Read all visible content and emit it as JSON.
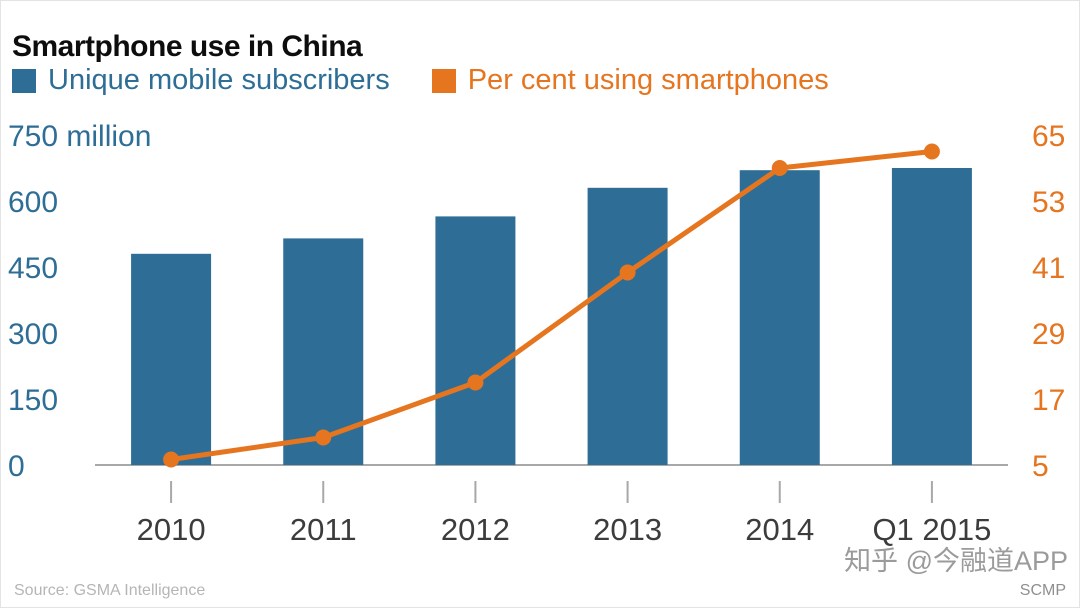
{
  "title": "Smartphone use in China",
  "colors": {
    "bar_blue": "#2e6e96",
    "line_orange": "#e5751f",
    "axis_gray": "#a8a8a8",
    "xlabel_gray": "#3c3c3c"
  },
  "legend": {
    "items": [
      {
        "label": "Unique mobile subscribers",
        "color": "#2e6e96"
      },
      {
        "label": "Per cent using smartphones",
        "color": "#e5751f"
      }
    ]
  },
  "footer": {
    "source": "Source: GSMA Intelligence",
    "credit": "SCMP",
    "watermark": "知乎 @今融道APP"
  },
  "chart_data": {
    "type": "bar",
    "title": "Smartphone use in China",
    "categories": [
      "2010",
      "2011",
      "2012",
      "2013",
      "2014",
      "Q1 2015"
    ],
    "series": [
      {
        "name": "Unique mobile subscribers",
        "type": "bar",
        "axis": "left",
        "color": "#2e6e96",
        "values": [
          480,
          515,
          565,
          630,
          670,
          675
        ]
      },
      {
        "name": "Per cent using smartphones",
        "type": "line",
        "axis": "right",
        "color": "#e5751f",
        "values": [
          6,
          10,
          20,
          40,
          59,
          62
        ]
      }
    ],
    "left_axis": {
      "unit": "million",
      "range": [
        0,
        750
      ],
      "tick_values": [
        750,
        600,
        450,
        300,
        150,
        0
      ],
      "tick_labels": [
        "750 million",
        "600",
        "450",
        "300",
        "150",
        "0"
      ],
      "color": "#2e6e96"
    },
    "right_axis": {
      "unit": "per cent",
      "range": [
        5,
        65
      ],
      "tick_values": [
        65,
        53,
        41,
        29,
        17,
        5
      ],
      "tick_labels": [
        "65",
        "53",
        "41",
        "29",
        "17",
        "5"
      ],
      "color": "#e5751f"
    },
    "grid": false,
    "legend_position": "top-left"
  }
}
